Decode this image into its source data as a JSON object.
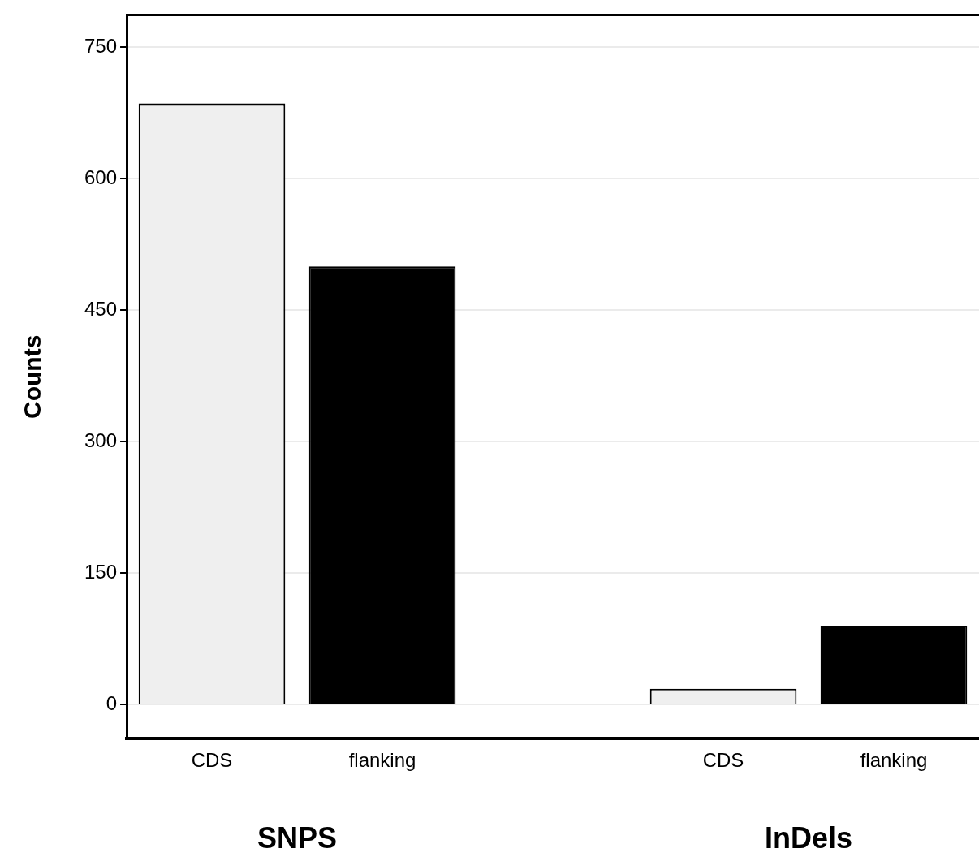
{
  "chart_data": {
    "type": "bar",
    "ylabel": "Counts",
    "categories": [
      "CDS",
      "flanking",
      null,
      "CDS",
      "flanking"
    ],
    "values": [
      686,
      500,
      null,
      18,
      90
    ],
    "colors": [
      "#efefef",
      "#000000",
      null,
      "#efefef",
      "#000000"
    ],
    "ylim": [
      -39,
      787
    ],
    "yticks": [
      0,
      150,
      300,
      450,
      600,
      750
    ],
    "grid": "y",
    "legend": false,
    "annotations": [
      "SNPS",
      "InDels"
    ]
  }
}
